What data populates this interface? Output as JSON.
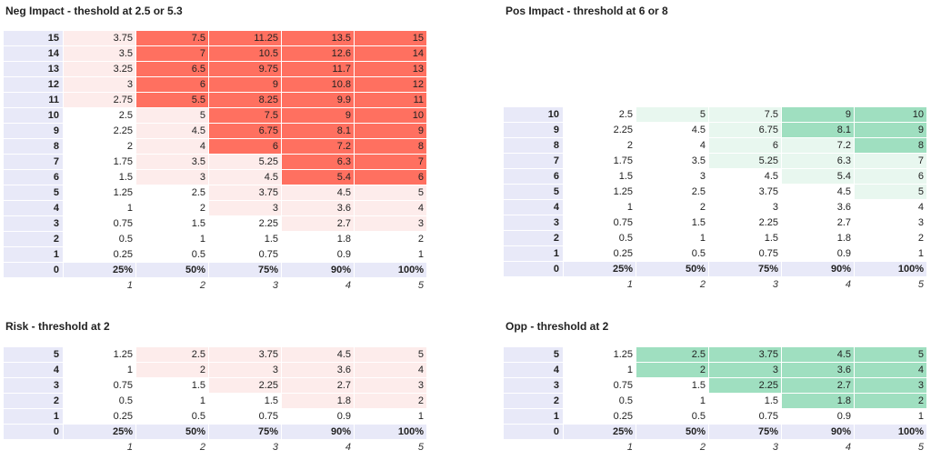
{
  "colors": {
    "header_bg": "#e8e9f8",
    "negative_strong": "#ff7060",
    "negative_light": "#fdeceb",
    "positive_strong": "#9fdfc0",
    "positive_light": "#e8f7ef"
  },
  "panels": {
    "neg_impact": {
      "title": "Neg Impact - theshold at 2.5 or 5.3",
      "rows": [
        {
          "label": "15",
          "values": [
            "3.75",
            "7.5",
            "11.25",
            "13.5",
            "15"
          ]
        },
        {
          "label": "14",
          "values": [
            "3.5",
            "7",
            "10.5",
            "12.6",
            "14"
          ]
        },
        {
          "label": "13",
          "values": [
            "3.25",
            "6.5",
            "9.75",
            "11.7",
            "13"
          ]
        },
        {
          "label": "12",
          "values": [
            "3",
            "6",
            "9",
            "10.8",
            "12"
          ]
        },
        {
          "label": "11",
          "values": [
            "2.75",
            "5.5",
            "8.25",
            "9.9",
            "11"
          ]
        },
        {
          "label": "10",
          "values": [
            "2.5",
            "5",
            "7.5",
            "9",
            "10"
          ]
        },
        {
          "label": "9",
          "values": [
            "2.25",
            "4.5",
            "6.75",
            "8.1",
            "9"
          ]
        },
        {
          "label": "8",
          "values": [
            "2",
            "4",
            "6",
            "7.2",
            "8"
          ]
        },
        {
          "label": "7",
          "values": [
            "1.75",
            "3.5",
            "5.25",
            "6.3",
            "7"
          ]
        },
        {
          "label": "6",
          "values": [
            "1.5",
            "3",
            "4.5",
            "5.4",
            "6"
          ]
        },
        {
          "label": "5",
          "values": [
            "1.25",
            "2.5",
            "3.75",
            "4.5",
            "5"
          ]
        },
        {
          "label": "4",
          "values": [
            "1",
            "2",
            "3",
            "3.6",
            "4"
          ]
        },
        {
          "label": "3",
          "values": [
            "0.75",
            "1.5",
            "2.25",
            "2.7",
            "3"
          ]
        },
        {
          "label": "2",
          "values": [
            "0.5",
            "1",
            "1.5",
            "1.8",
            "2"
          ]
        },
        {
          "label": "1",
          "values": [
            "0.25",
            "0.5",
            "0.75",
            "0.9",
            "1"
          ]
        }
      ],
      "pct_row": {
        "label": "0",
        "values": [
          "25%",
          "50%",
          "75%",
          "90%",
          "100%"
        ]
      },
      "index_row": [
        "1",
        "2",
        "3",
        "4",
        "5"
      ]
    },
    "pos_impact": {
      "title": "Pos Impact - threshold at 6 or 8",
      "rows": [
        {
          "label": "10",
          "values": [
            "2.5",
            "5",
            "7.5",
            "9",
            "10"
          ]
        },
        {
          "label": "9",
          "values": [
            "2.25",
            "4.5",
            "6.75",
            "8.1",
            "9"
          ]
        },
        {
          "label": "8",
          "values": [
            "2",
            "4",
            "6",
            "7.2",
            "8"
          ]
        },
        {
          "label": "7",
          "values": [
            "1.75",
            "3.5",
            "5.25",
            "6.3",
            "7"
          ]
        },
        {
          "label": "6",
          "values": [
            "1.5",
            "3",
            "4.5",
            "5.4",
            "6"
          ]
        },
        {
          "label": "5",
          "values": [
            "1.25",
            "2.5",
            "3.75",
            "4.5",
            "5"
          ]
        },
        {
          "label": "4",
          "values": [
            "1",
            "2",
            "3",
            "3.6",
            "4"
          ]
        },
        {
          "label": "3",
          "values": [
            "0.75",
            "1.5",
            "2.25",
            "2.7",
            "3"
          ]
        },
        {
          "label": "2",
          "values": [
            "0.5",
            "1",
            "1.5",
            "1.8",
            "2"
          ]
        },
        {
          "label": "1",
          "values": [
            "0.25",
            "0.5",
            "0.75",
            "0.9",
            "1"
          ]
        }
      ],
      "pct_row": {
        "label": "0",
        "values": [
          "25%",
          "50%",
          "75%",
          "90%",
          "100%"
        ]
      },
      "index_row": [
        "1",
        "2",
        "3",
        "4",
        "5"
      ]
    },
    "risk": {
      "title": "Risk - threshold at 2",
      "rows": [
        {
          "label": "5",
          "values": [
            "1.25",
            "2.5",
            "3.75",
            "4.5",
            "5"
          ]
        },
        {
          "label": "4",
          "values": [
            "1",
            "2",
            "3",
            "3.6",
            "4"
          ]
        },
        {
          "label": "3",
          "values": [
            "0.75",
            "1.5",
            "2.25",
            "2.7",
            "3"
          ]
        },
        {
          "label": "2",
          "values": [
            "0.5",
            "1",
            "1.5",
            "1.8",
            "2"
          ]
        },
        {
          "label": "1",
          "values": [
            "0.25",
            "0.5",
            "0.75",
            "0.9",
            "1"
          ]
        }
      ],
      "pct_row": {
        "label": "0",
        "values": [
          "25%",
          "50%",
          "75%",
          "90%",
          "100%"
        ]
      },
      "index_row": [
        "1",
        "2",
        "3",
        "4",
        "5"
      ]
    },
    "opp": {
      "title": "Opp - threshold at 2",
      "rows": [
        {
          "label": "5",
          "values": [
            "1.25",
            "2.5",
            "3.75",
            "4.5",
            "5"
          ]
        },
        {
          "label": "4",
          "values": [
            "1",
            "2",
            "3",
            "3.6",
            "4"
          ]
        },
        {
          "label": "3",
          "values": [
            "0.75",
            "1.5",
            "2.25",
            "2.7",
            "3"
          ]
        },
        {
          "label": "2",
          "values": [
            "0.5",
            "1",
            "1.5",
            "1.8",
            "2"
          ]
        },
        {
          "label": "1",
          "values": [
            "0.25",
            "0.5",
            "0.75",
            "0.9",
            "1"
          ]
        }
      ],
      "pct_row": {
        "label": "0",
        "values": [
          "25%",
          "50%",
          "75%",
          "90%",
          "100%"
        ]
      },
      "index_row": [
        "1",
        "2",
        "3",
        "4",
        "5"
      ]
    }
  }
}
